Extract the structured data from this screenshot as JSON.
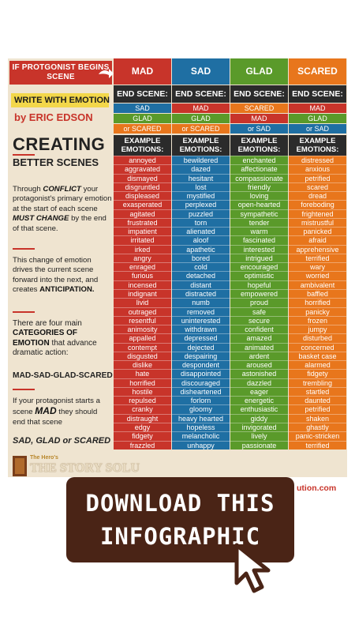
{
  "left": {
    "if_header": "IF PROTGONIST BEGINS SCENE",
    "write_with_emotion": "WRITE WITH EMOTION",
    "author": "by ERIC EDSON",
    "creating": "CREATING",
    "better_scenes": "BETTER SCENES",
    "para1_pre": "Through ",
    "para1_conflict": "CONFLICT",
    "para1_mid": " your protagonist's primary emotion at the start of each scene ",
    "para1_must": "MUST CHANGE",
    "para1_post": " by the end of that scene.",
    "para2_pre": "This change of emotion drives the current scene forward into the next, and creates ",
    "para2_anticipation": "ANTICIPATION.",
    "para3_pre": "There are four main ",
    "para3_categories": "CATEGORIES OF EMOTION",
    "para3_post": " that advance dramatic action:",
    "mad_sad_glad_scared": "MAD-SAD-GLAD-SCARED",
    "para4_pre": "If your protagonist starts a scene ",
    "para4_mad": "MAD",
    "para4_post": " they should end that scene",
    "sad_glad_scared": "SAD, GLAD or SCARED",
    "logo_small": "The Hero's",
    "logo_big": "THE STORY SOLU"
  },
  "columns": [
    {
      "name": "MAD",
      "color": "#c8342a",
      "end_label": "END SCENE:",
      "end_rows": [
        {
          "text": "SAD",
          "color": "#1f6fa3"
        },
        {
          "text": "GLAD",
          "color": "#5a9a2a"
        },
        {
          "text": "or SCARED",
          "color": "#e8761c"
        }
      ],
      "example_label_1": "EXAMPLE",
      "example_label_2": "EMOTIONS:",
      "emotions": [
        "annoyed",
        "aggravated",
        "dismayed",
        "disgruntled",
        "displeased",
        "exasperated",
        "agitated",
        "frustrated",
        "impatient",
        "irritated",
        "irked",
        "angry",
        "enraged",
        "furious",
        "incensed",
        "indignant",
        "livid",
        "outraged",
        "resentful",
        "animosity",
        "appalled",
        "contempt",
        "disgusted",
        "dislike",
        "hate",
        "horrified",
        "hostile",
        "repulsed",
        "cranky",
        "distraught",
        "edgy",
        "fidgety",
        "frazzled"
      ]
    },
    {
      "name": "SAD",
      "color": "#1f6fa3",
      "end_label": "END SCENE:",
      "end_rows": [
        {
          "text": "MAD",
          "color": "#c8342a"
        },
        {
          "text": "GLAD",
          "color": "#5a9a2a"
        },
        {
          "text": "or SCARED",
          "color": "#e8761c"
        }
      ],
      "example_label_1": "EXAMPLE",
      "example_label_2": "EMOTIONS:",
      "emotions": [
        "bewildered",
        "dazed",
        "hesitant",
        "lost",
        "mystified",
        "perplexed",
        "puzzled",
        "torn",
        "alienated",
        "aloof",
        "apathetic",
        "bored",
        "cold",
        "detached",
        "distant",
        "distracted",
        "numb",
        "removed",
        "uninterested",
        "withdrawn",
        "depressed",
        "dejected",
        "despairing",
        "despondent",
        "disappointed",
        "discouraged",
        "disheartened",
        "forlorn",
        "gloomy",
        "heavy hearted",
        "hopeless",
        "melancholic",
        "unhappy"
      ]
    },
    {
      "name": "GLAD",
      "color": "#5a9a2a",
      "end_label": "END SCENE:",
      "end_rows": [
        {
          "text": "SCARED",
          "color": "#e8761c"
        },
        {
          "text": "MAD",
          "color": "#c8342a"
        },
        {
          "text": "or SAD",
          "color": "#1f6fa3"
        }
      ],
      "example_label_1": "EXAMPLE",
      "example_label_2": "EMOTIONS:",
      "emotions": [
        "enchanted",
        "affectionate",
        "compassionate",
        "friendly",
        "loving",
        "open-hearted",
        "sympathetic",
        "tender",
        "warm",
        "fascinated",
        "interested",
        "intrigued",
        "encouraged",
        "optimistic",
        "hopeful",
        "empowered",
        "proud",
        "safe",
        "secure",
        "confident",
        "amazed",
        "animated",
        "ardent",
        "aroused",
        "astonished",
        "dazzled",
        "eager",
        "energetic",
        "enthusiastic",
        "giddy",
        "invigorated",
        "lively",
        "passionate"
      ]
    },
    {
      "name": "SCARED",
      "color": "#e8761c",
      "end_label": "END SCENE:",
      "end_rows": [
        {
          "text": "MAD",
          "color": "#c8342a"
        },
        {
          "text": "GLAD",
          "color": "#5a9a2a"
        },
        {
          "text": "or SAD",
          "color": "#1f6fa3"
        }
      ],
      "example_label_1": "EXAMPLE",
      "example_label_2": "EMOTIONS:",
      "emotions": [
        "distressed",
        "anxious",
        "petrified",
        "scared",
        "dread",
        "foreboding",
        "frightened",
        "mistrustful",
        "panicked",
        "afraid",
        "apprehensive",
        "terrified",
        "wary",
        "worried",
        "ambivalent",
        "baffled",
        "horrified",
        "panicky",
        "frozen",
        "jumpy",
        "disturbed",
        "concerned",
        "basket case",
        "alarmed",
        "fidgety",
        "trembling",
        "startled",
        "daunted",
        "petrified",
        "shaken",
        "ghastly",
        "panic-stricken",
        "terrified"
      ]
    }
  ],
  "url_fragment": "ution.com",
  "banner": {
    "line1": "DOWNLOAD THIS",
    "line2": "INFOGRAPHIC"
  },
  "colors": {
    "mad": "#c8342a",
    "sad": "#1f6fa3",
    "glad": "#5a9a2a",
    "scared": "#e8761c",
    "banner": "#4a2416",
    "poster_bg": "#efe4d0"
  }
}
